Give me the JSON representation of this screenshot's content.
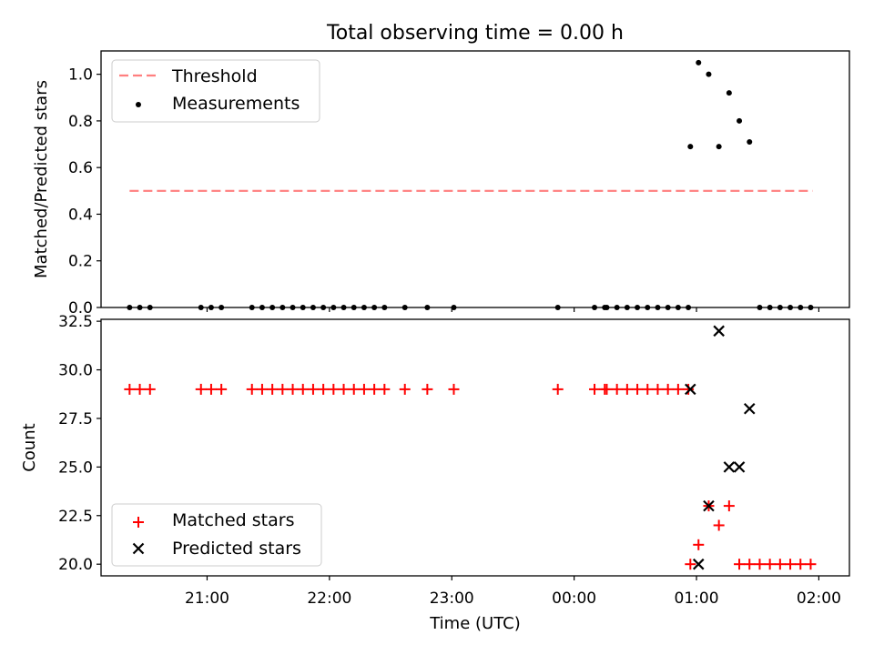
{
  "title": "Total observing time = 0.00 h",
  "colors": {
    "threshold": "#ff7f7f",
    "matched": "#ff0000",
    "predicted": "#000000",
    "measurement": "#000000"
  },
  "icons": {
    "matched_marker": "plus-marker",
    "predicted_marker": "x-marker",
    "measurement_marker": "dot-marker"
  },
  "chart_data": [
    {
      "type": "scatter",
      "ylabel": "Matched/Predicted stars",
      "xlabel": "",
      "ylim": [
        0,
        1.1
      ],
      "xlim": [
        "20:08",
        "02:15"
      ],
      "yticks": [
        "0.0",
        "0.2",
        "0.4",
        "0.6",
        "0.8",
        "1.0"
      ],
      "legend": {
        "placement": "upper-left",
        "entries": [
          "Threshold",
          "Measurements"
        ]
      },
      "threshold": {
        "name": "Threshold",
        "y": 0.5,
        "x_start": "20:22",
        "x_end": "01:57"
      },
      "series": [
        {
          "name": "Measurements",
          "points": [
            [
              "20:22",
              0
            ],
            [
              "20:27",
              0
            ],
            [
              "20:32",
              0
            ],
            [
              "20:57",
              0
            ],
            [
              "21:02",
              0
            ],
            [
              "21:07",
              0
            ],
            [
              "21:22",
              0
            ],
            [
              "21:27",
              0
            ],
            [
              "21:32",
              0
            ],
            [
              "21:37",
              0
            ],
            [
              "21:42",
              0
            ],
            [
              "21:47",
              0
            ],
            [
              "21:52",
              0
            ],
            [
              "21:57",
              0
            ],
            [
              "22:02",
              0
            ],
            [
              "22:07",
              0
            ],
            [
              "22:12",
              0
            ],
            [
              "22:17",
              0
            ],
            [
              "22:22",
              0
            ],
            [
              "22:27",
              0
            ],
            [
              "22:37",
              0
            ],
            [
              "22:48",
              0
            ],
            [
              "23:01",
              0
            ],
            [
              "23:52",
              0
            ],
            [
              "00:10",
              0
            ],
            [
              "00:15",
              0
            ],
            [
              "00:16",
              0
            ],
            [
              "00:21",
              0
            ],
            [
              "00:26",
              0
            ],
            [
              "00:31",
              0
            ],
            [
              "00:36",
              0
            ],
            [
              "00:41",
              0
            ],
            [
              "00:46",
              0
            ],
            [
              "00:51",
              0
            ],
            [
              "00:56",
              0
            ],
            [
              "00:57",
              0.69
            ],
            [
              "01:01",
              1.05
            ],
            [
              "01:06",
              1.0
            ],
            [
              "01:11",
              0.69
            ],
            [
              "01:16",
              0.92
            ],
            [
              "01:21",
              0.8
            ],
            [
              "01:26",
              0.71
            ],
            [
              "01:31",
              0
            ],
            [
              "01:36",
              0
            ],
            [
              "01:41",
              0
            ],
            [
              "01:46",
              0
            ],
            [
              "01:51",
              0
            ],
            [
              "01:56",
              0
            ]
          ]
        }
      ]
    },
    {
      "type": "scatter",
      "ylabel": "Count",
      "xlabel": "Time (UTC)",
      "ylim": [
        19.4,
        32.6
      ],
      "xlim": [
        "20:08",
        "02:15"
      ],
      "yticks": [
        "20.0",
        "22.5",
        "25.0",
        "27.5",
        "30.0",
        "32.5"
      ],
      "xticks": [
        "21:00",
        "22:00",
        "23:00",
        "00:00",
        "01:00",
        "02:00"
      ],
      "legend": {
        "placement": "lower-left",
        "entries": [
          "Matched stars",
          "Predicted stars"
        ]
      },
      "series": [
        {
          "name": "Matched stars",
          "points": [
            [
              "20:22",
              29
            ],
            [
              "20:27",
              29
            ],
            [
              "20:32",
              29
            ],
            [
              "20:57",
              29
            ],
            [
              "21:02",
              29
            ],
            [
              "21:07",
              29
            ],
            [
              "21:22",
              29
            ],
            [
              "21:27",
              29
            ],
            [
              "21:32",
              29
            ],
            [
              "21:37",
              29
            ],
            [
              "21:42",
              29
            ],
            [
              "21:47",
              29
            ],
            [
              "21:52",
              29
            ],
            [
              "21:57",
              29
            ],
            [
              "22:02",
              29
            ],
            [
              "22:07",
              29
            ],
            [
              "22:12",
              29
            ],
            [
              "22:17",
              29
            ],
            [
              "22:22",
              29
            ],
            [
              "22:27",
              29
            ],
            [
              "22:37",
              29
            ],
            [
              "22:48",
              29
            ],
            [
              "23:01",
              29
            ],
            [
              "23:52",
              29
            ],
            [
              "00:10",
              29
            ],
            [
              "00:15",
              29
            ],
            [
              "00:16",
              29
            ],
            [
              "00:21",
              29
            ],
            [
              "00:26",
              29
            ],
            [
              "00:31",
              29
            ],
            [
              "00:36",
              29
            ],
            [
              "00:41",
              29
            ],
            [
              "00:46",
              29
            ],
            [
              "00:51",
              29
            ],
            [
              "00:56",
              29
            ],
            [
              "00:57",
              20
            ],
            [
              "01:01",
              21
            ],
            [
              "01:06",
              23
            ],
            [
              "01:11",
              22
            ],
            [
              "01:16",
              23
            ],
            [
              "01:21",
              20
            ],
            [
              "01:26",
              20
            ],
            [
              "01:31",
              20
            ],
            [
              "01:36",
              20
            ],
            [
              "01:41",
              20
            ],
            [
              "01:46",
              20
            ],
            [
              "01:51",
              20
            ],
            [
              "01:56",
              20
            ]
          ]
        },
        {
          "name": "Predicted stars",
          "points": [
            [
              "00:57",
              29
            ],
            [
              "01:01",
              20
            ],
            [
              "01:06",
              23
            ],
            [
              "01:11",
              32
            ],
            [
              "01:16",
              25
            ],
            [
              "01:21",
              25
            ],
            [
              "01:26",
              28
            ]
          ]
        }
      ]
    }
  ]
}
